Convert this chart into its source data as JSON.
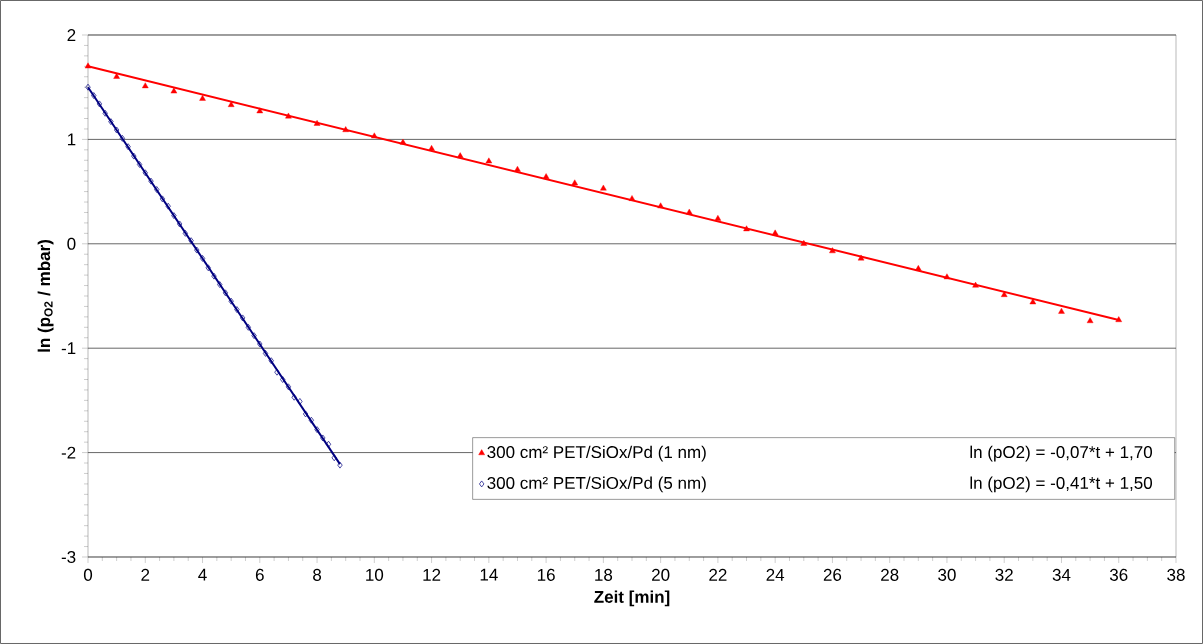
{
  "chart_data": {
    "type": "scatter",
    "xlabel": "Zeit [min]",
    "ylabel": "ln (p$_{O2}$ / mbar)",
    "xlim": [
      0,
      38
    ],
    "ylim": [
      -3,
      2
    ],
    "xticks": [
      0,
      2,
      4,
      6,
      8,
      10,
      12,
      14,
      16,
      18,
      20,
      22,
      24,
      26,
      28,
      30,
      32,
      34,
      36,
      38
    ],
    "yticks": [
      -3,
      -2,
      -1,
      0,
      1,
      2
    ],
    "grid": "y",
    "legend": "bottom",
    "annotations": [
      "ln (pO2) = -0,07*t + 1,70",
      "ln (pO2) = -0,41*t + 1,50"
    ],
    "series": [
      {
        "type": "scatter",
        "name": "300 cm² PET/SiOx/Pd (1 nm)",
        "color": "#ff0000",
        "marker": "triangle",
        "x": [
          0,
          1,
          2,
          3,
          4,
          5,
          6,
          7,
          8,
          9,
          10,
          11,
          12,
          13,
          14,
          15,
          16,
          17,
          18,
          19,
          20,
          21,
          22,
          23,
          24,
          25,
          26,
          27,
          29,
          30,
          31,
          32,
          33,
          34,
          35,
          36
        ],
        "values": [
          1.7,
          1.6,
          1.51,
          1.46,
          1.39,
          1.33,
          1.27,
          1.22,
          1.15,
          1.09,
          1.03,
          0.97,
          0.91,
          0.84,
          0.79,
          0.71,
          0.64,
          0.58,
          0.53,
          0.43,
          0.36,
          0.3,
          0.24,
          0.14,
          0.1,
          0.0,
          -0.07,
          -0.14,
          -0.24,
          -0.32,
          -0.4,
          -0.49,
          -0.56,
          -0.65,
          -0.74,
          -0.73
        ]
      },
      {
        "type": "scatter",
        "name": "300 cm² PET/SiOx/Pd (5 nm)",
        "color": "#000080",
        "marker": "diamond",
        "x": [
          0,
          0.2,
          0.4,
          0.6,
          0.8,
          1.0,
          1.2,
          1.4,
          1.6,
          1.8,
          2.0,
          2.2,
          2.4,
          2.6,
          2.8,
          3.0,
          3.2,
          3.4,
          3.6,
          3.8,
          4.0,
          4.2,
          4.4,
          4.6,
          4.8,
          5.0,
          5.2,
          5.4,
          5.6,
          5.8,
          6.0,
          6.2,
          6.4,
          6.6,
          6.8,
          7.0,
          7.2,
          7.4,
          7.6,
          7.8,
          8.0,
          8.2,
          8.4,
          8.6,
          8.8
        ],
        "values": [
          1.5,
          1.42,
          1.34,
          1.25,
          1.17,
          1.09,
          1.01,
          0.93,
          0.84,
          0.76,
          0.68,
          0.6,
          0.52,
          0.43,
          0.36,
          0.27,
          0.19,
          0.1,
          0.03,
          -0.06,
          -0.14,
          -0.23,
          -0.31,
          -0.39,
          -0.47,
          -0.55,
          -0.63,
          -0.71,
          -0.8,
          -0.88,
          -0.96,
          -1.05,
          -1.12,
          -1.23,
          -1.3,
          -1.37,
          -1.47,
          -1.51,
          -1.63,
          -1.69,
          -1.78,
          -1.86,
          -1.92,
          -2.05,
          -2.12
        ]
      },
      {
        "type": "line",
        "color": "#ff0000",
        "x": [
          0,
          36
        ],
        "values": [
          1.7,
          -0.73
        ]
      },
      {
        "type": "line",
        "color": "#000080",
        "x": [
          0,
          8.8
        ],
        "values": [
          1.5,
          -2.11
        ]
      }
    ]
  }
}
